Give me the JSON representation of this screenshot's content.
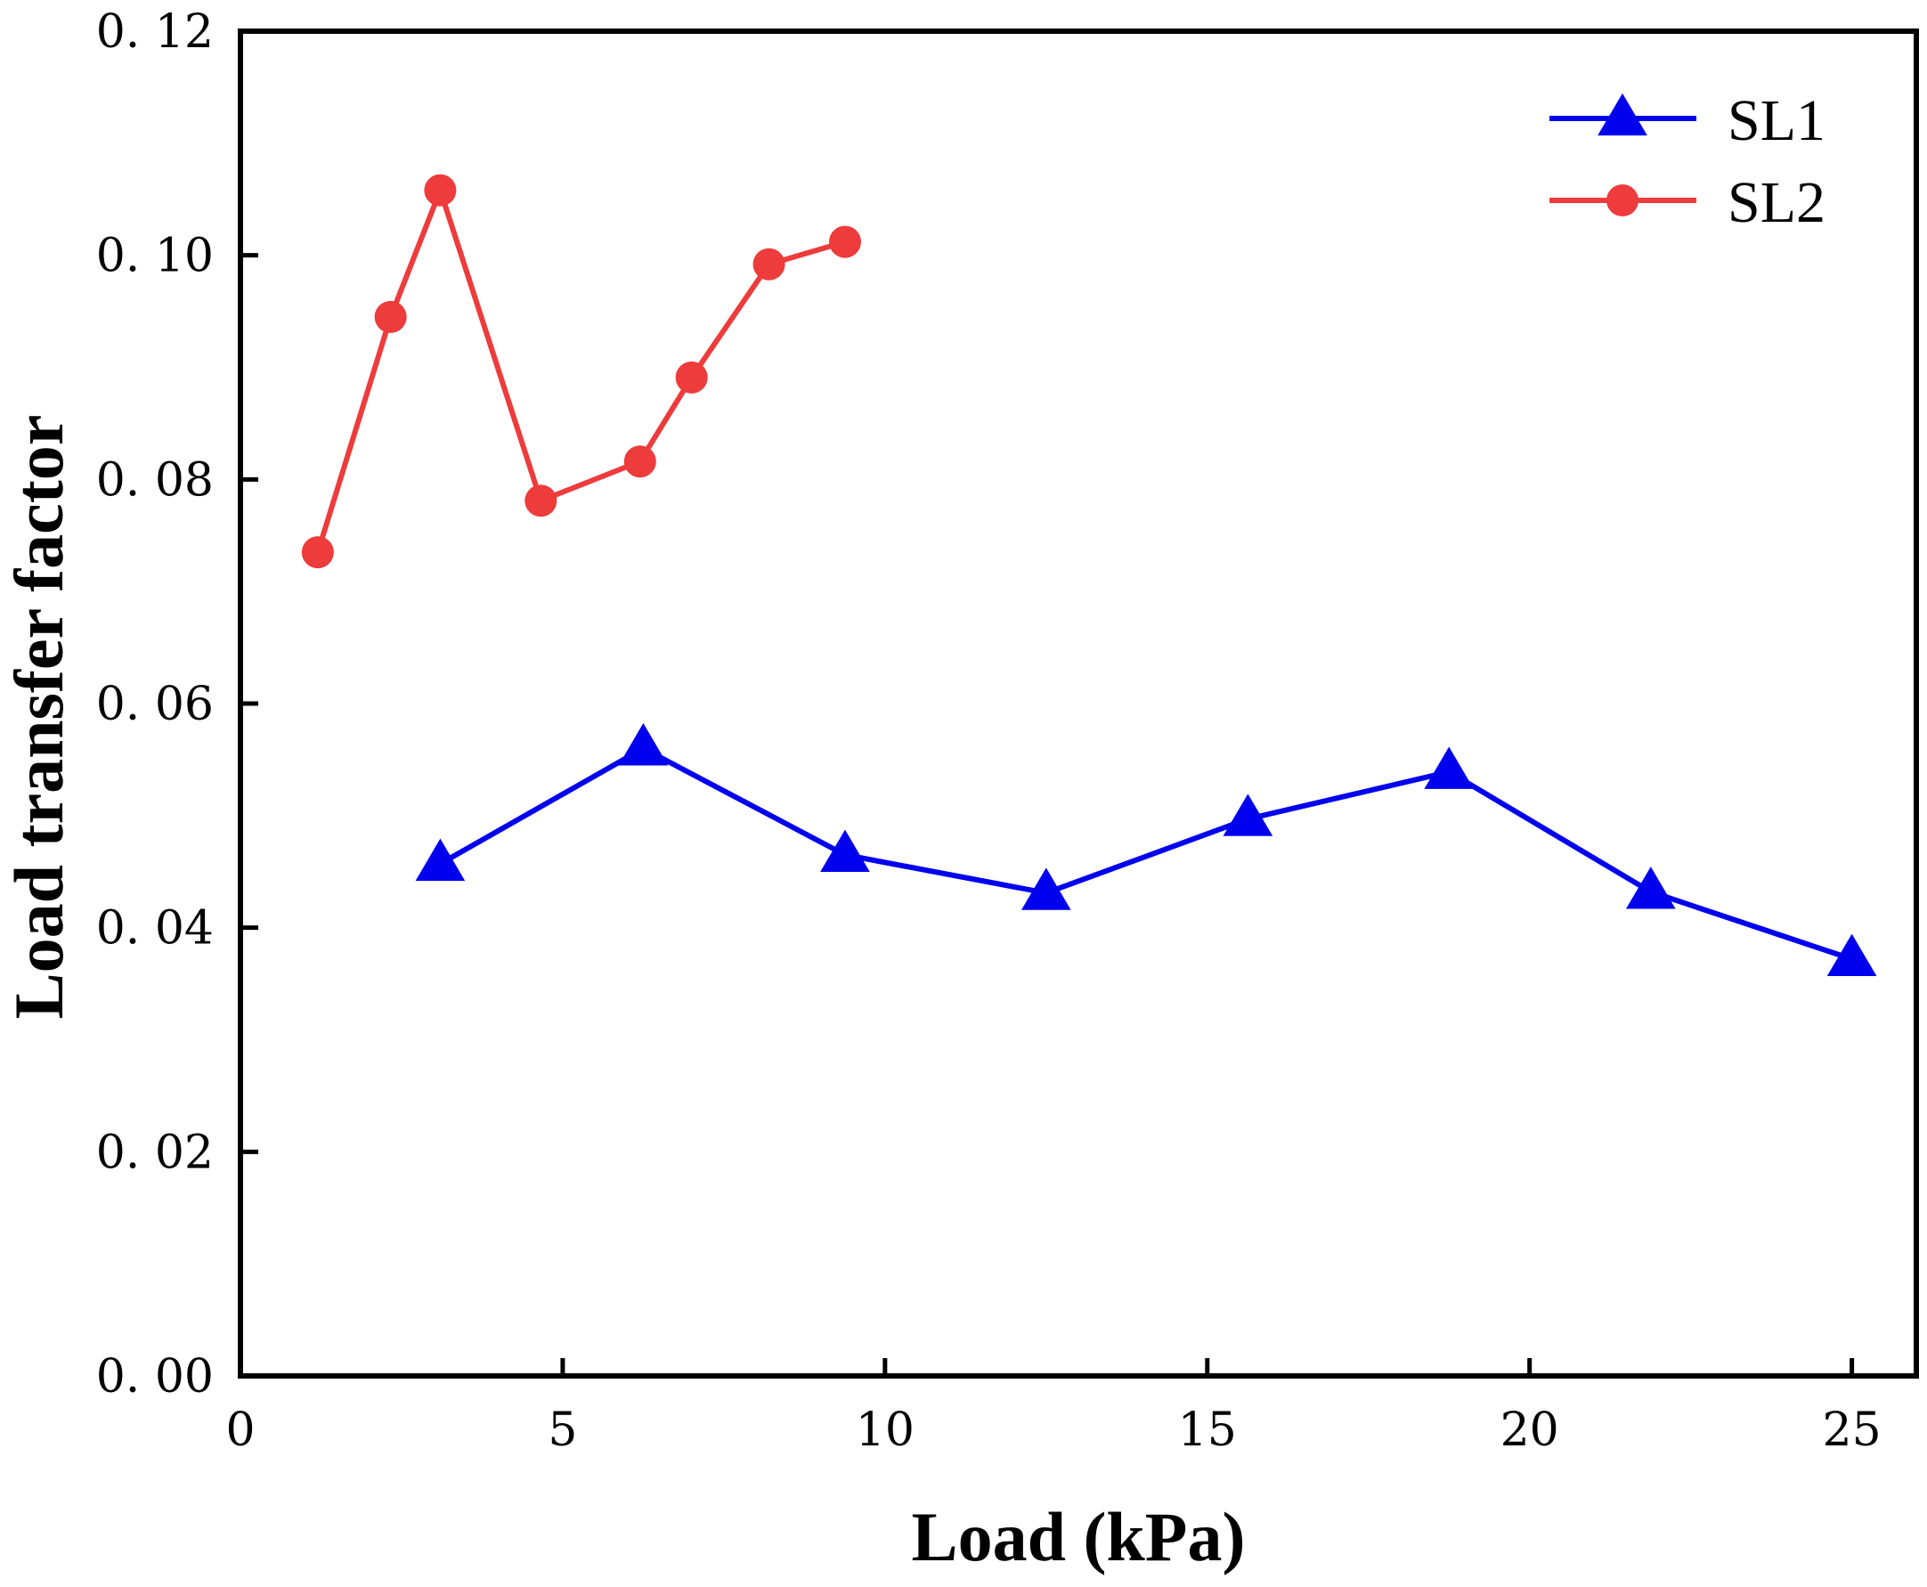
{
  "chart_data": {
    "type": "line",
    "title": "",
    "xlabel": "Load (kPa)",
    "ylabel": "Load transfer factor",
    "xlim": [
      0,
      26
    ],
    "ylim": [
      0,
      0.12
    ],
    "xticks": [
      0,
      5,
      10,
      15,
      20,
      25
    ],
    "yticks": [
      0,
      0.02,
      0.04,
      0.06,
      0.08,
      0.1,
      0.12
    ],
    "xtick_labels": [
      "0",
      "5",
      "10",
      "15",
      "20",
      "25"
    ],
    "ytick_labels": [
      "0. 00",
      "0. 02",
      "0. 04",
      "0. 06",
      "0. 08",
      "0. 10",
      "0. 12"
    ],
    "grid": false,
    "legend_position": "top-right",
    "series": [
      {
        "name": "SL1",
        "color": "#0000ee",
        "marker": "triangle",
        "x": [
          3.1,
          6.25,
          9.38,
          12.5,
          15.63,
          18.75,
          21.88,
          25.0
        ],
        "y": [
          0.0457,
          0.056,
          0.0465,
          0.0431,
          0.0497,
          0.0539,
          0.0432,
          0.0372
        ]
      },
      {
        "name": "SL2",
        "color": "#ee3b3b",
        "marker": "circle",
        "x": [
          1.2,
          2.33,
          3.1,
          4.66,
          6.2,
          7.0,
          8.2,
          9.38
        ],
        "y": [
          0.0735,
          0.0945,
          0.1058,
          0.0781,
          0.0816,
          0.0891,
          0.0992,
          0.1012
        ]
      }
    ]
  }
}
